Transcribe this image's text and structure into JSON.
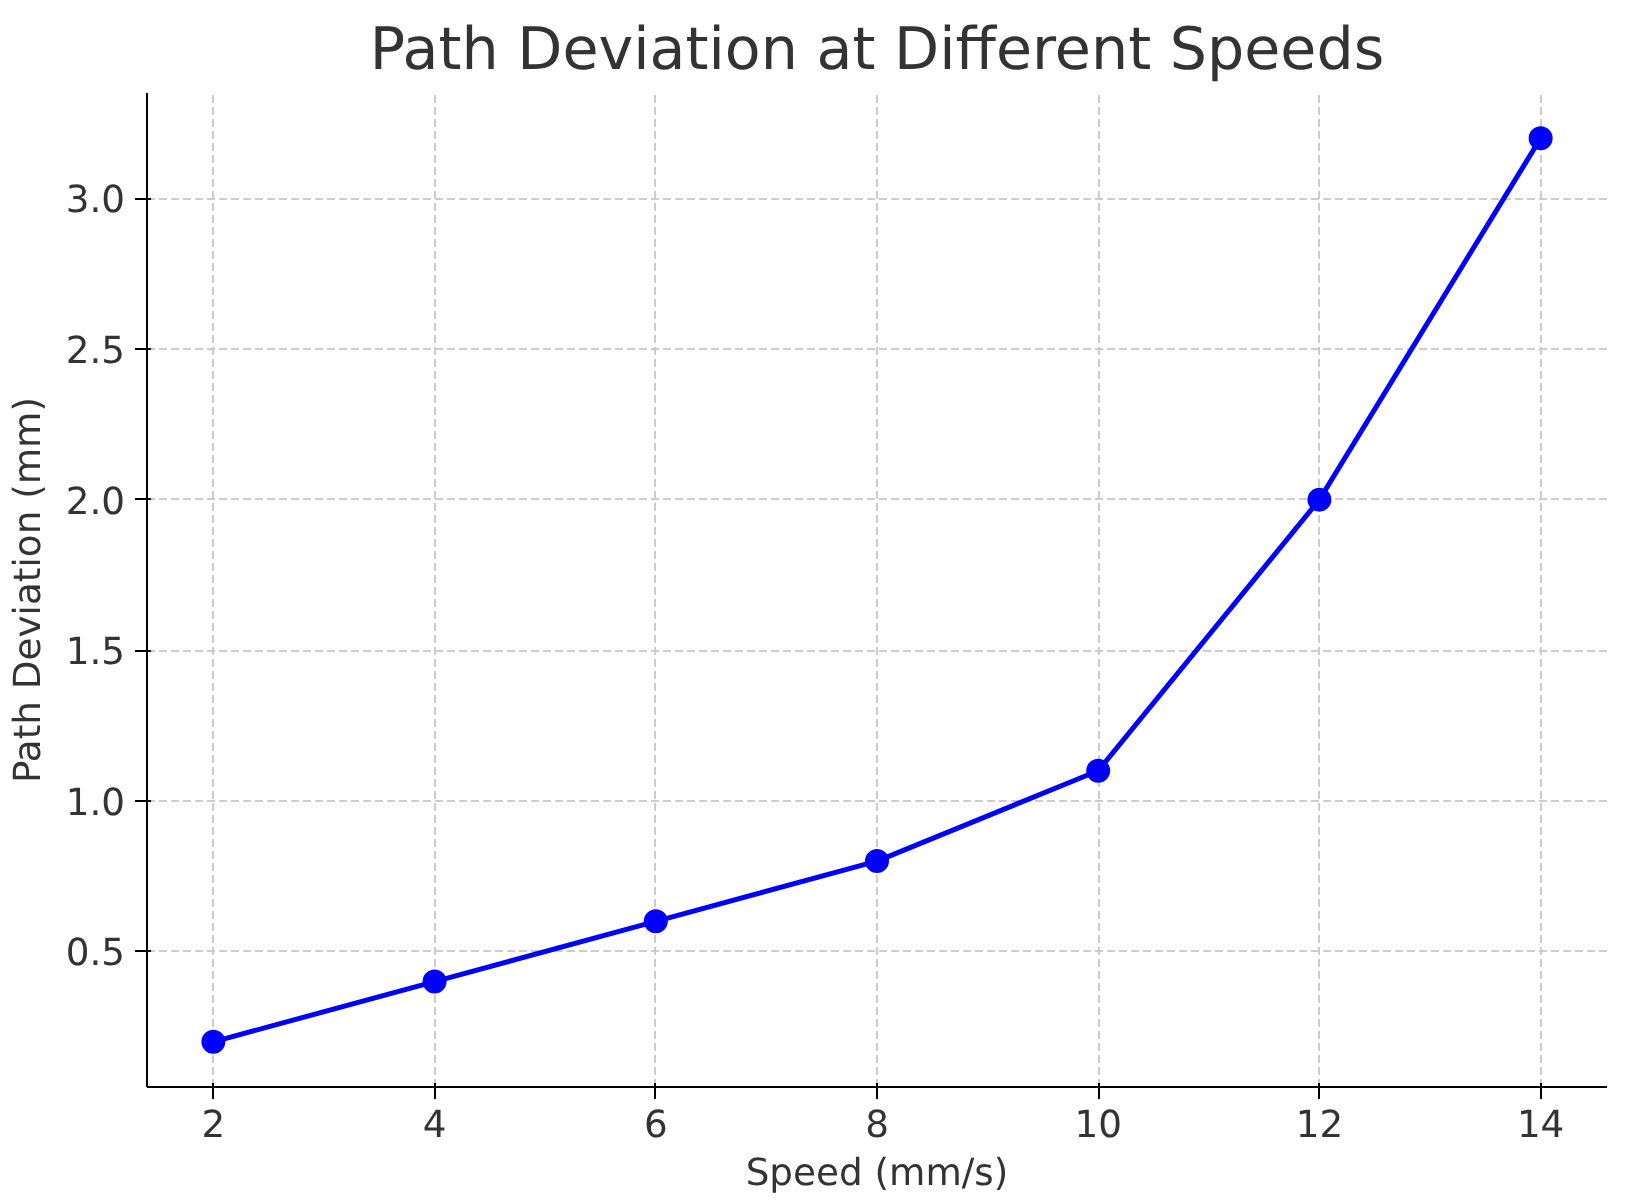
{
  "chart_data": {
    "type": "line",
    "title": "Path Deviation at Different Speeds",
    "xlabel": "Speed (mm/s)",
    "ylabel": "Path Deviation (mm)",
    "x": [
      2,
      4,
      6,
      8,
      10,
      12,
      14
    ],
    "series": [
      {
        "color": "#0000ff",
        "values": [
          0.2,
          0.4,
          0.6,
          0.8,
          1.1,
          2.0,
          3.2
        ]
      }
    ],
    "xlim": [
      1.4,
      14.6
    ],
    "ylim": [
      0.05,
      3.35
    ],
    "xticks": [
      2,
      4,
      6,
      8,
      10,
      12,
      14
    ],
    "yticks": [
      {
        "value": 0.5,
        "label": "0.5"
      },
      {
        "value": 1.0,
        "label": "1.0"
      },
      {
        "value": 1.5,
        "label": "1.5"
      },
      {
        "value": 2.0,
        "label": "2.0"
      },
      {
        "value": 2.5,
        "label": "2.5"
      },
      {
        "value": 3.0,
        "label": "3.0"
      }
    ],
    "grid": true,
    "marker": "circle",
    "line_style": "solid"
  }
}
